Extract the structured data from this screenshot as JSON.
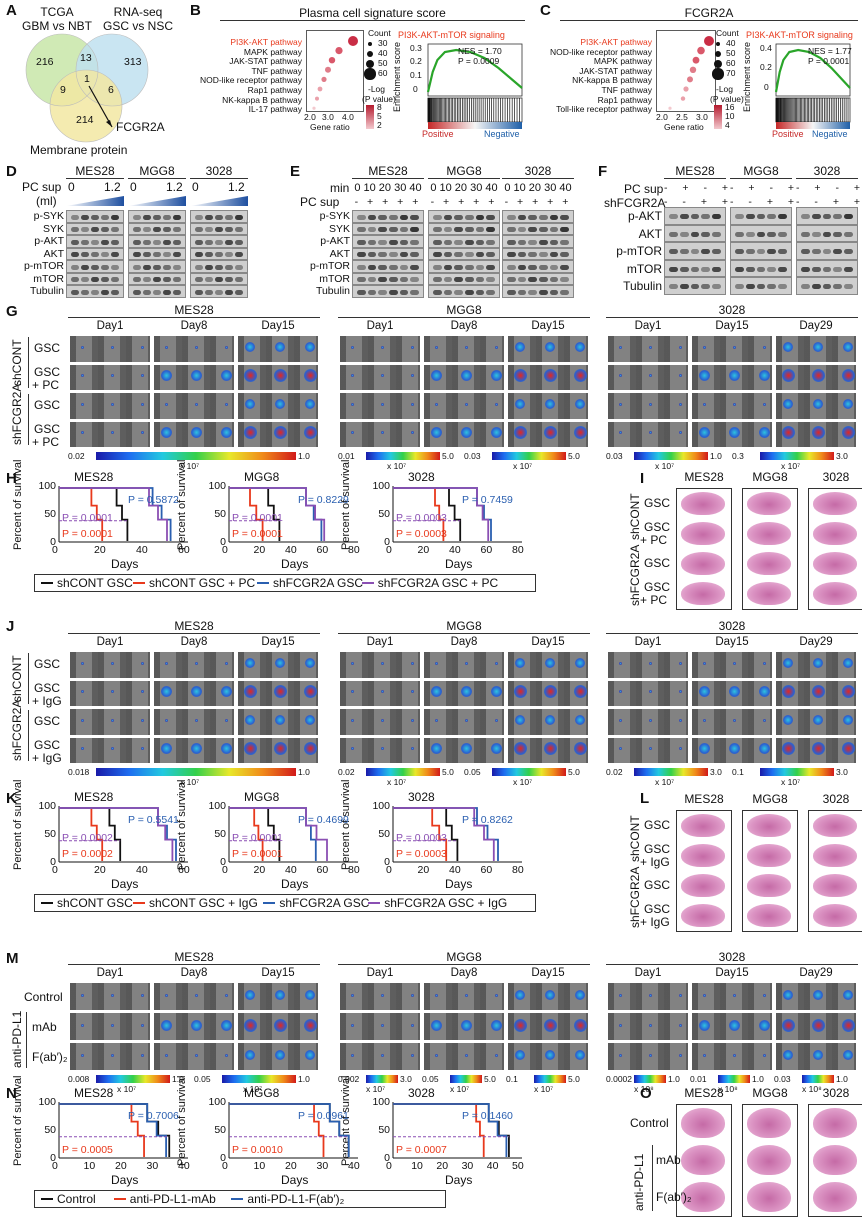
{
  "panels": [
    "A",
    "B",
    "C",
    "D",
    "E",
    "F",
    "G",
    "H",
    "I",
    "J",
    "K",
    "L",
    "M",
    "N",
    "O"
  ],
  "venn": {
    "set1": "TCGA\nGBM vs NBT",
    "set1_l1": "TCGA",
    "set1_l2": "GBM vs NBT",
    "set2_l1": "RNA-seq",
    "set2_l2": "GSC vs NSC",
    "set3": "Membrane protein",
    "regions": [
      "216",
      "13",
      "313",
      "9",
      "1",
      "6",
      "214"
    ],
    "gene": "FCGR2A",
    "colors": {
      "a": "#c8e6a8",
      "b": "#bfe0f0",
      "c": "#f2e7a2"
    }
  },
  "panelB": {
    "title": "Plasma cell signature score",
    "pathways": [
      "PI3K-AKT pathway",
      "MAPK pathway",
      "JAK-STAT pathway",
      "TNF pathway",
      "NOD-like receptor pathway",
      "Rap1 pathway",
      "NK-kappa B pathway",
      "IL-17 pathway"
    ],
    "xlabel": "Gene ratio",
    "xticks": [
      "2.0",
      "3.0",
      "4.0"
    ],
    "count_title": "Count",
    "counts": [
      "30",
      "40",
      "50",
      "60"
    ],
    "p_title": "-Log\n(P value)",
    "p_title_l1": "-Log",
    "p_title_l2": "(P value)",
    "pvals": [
      "8",
      "5",
      "2"
    ],
    "gsea_title": "PI3K-AKT-mTOR signaling",
    "nes": "NES = 1.70",
    "p": "P = 0.0009",
    "yticks": [
      "0.3",
      "0.2",
      "0.1",
      "0"
    ],
    "ylabel": "Enrichment score",
    "pos": "Positive",
    "neg": "Negative"
  },
  "panelC": {
    "title": "FCGR2A",
    "pathways": [
      "PI3K-AKT pathway",
      "NOD-like receptor pathway",
      "MAPK pathway",
      "JAK-STAT pathway",
      "NK-kappa B pathway",
      "TNF pathway",
      "Rap1 pathway",
      "Toll-like receptor pathway"
    ],
    "xlabel": "Gene ratio",
    "xticks": [
      "2.0",
      "2.5",
      "3.0"
    ],
    "count_title": "Count",
    "counts": [
      "40",
      "50",
      "60",
      "70"
    ],
    "p_title_l1": "-Log",
    "p_title_l2": "(P value)",
    "pvals": [
      "16",
      "10",
      "4"
    ],
    "gsea_title": "PI3K-AKT-mTOR signaling",
    "nes": "NES = 1.77",
    "p": "P = 0.0001",
    "yticks": [
      "0.4",
      "0.2",
      "0"
    ],
    "ylabel": "Enrichment score",
    "pos": "Positive",
    "neg": "Negative"
  },
  "panelD": {
    "cells": [
      "MES28",
      "MGG8",
      "3028"
    ],
    "pc_l1": "PC sup",
    "pc_l2": "(ml)",
    "range": [
      "0",
      "1.2"
    ],
    "rows": [
      "p-SYK",
      "SYK",
      "p-AKT",
      "AKT",
      "p-mTOR",
      "mTOR",
      "Tubulin"
    ]
  },
  "panelE": {
    "cells": [
      "MES28",
      "MGG8",
      "3028"
    ],
    "min_label": "min",
    "mins": "0 10 20 30 40",
    "pc_label": "PC sup",
    "pc_signs": "- + + + +",
    "rows": [
      "p-SYK",
      "SYK",
      "p-AKT",
      "AKT",
      "p-mTOR",
      "mTOR",
      "Tubulin"
    ]
  },
  "panelF": {
    "cells": [
      "MES28",
      "MGG8",
      "3028"
    ],
    "pc_label": "PC sup",
    "pc_signs": "- + - +",
    "sh_label": "shFCGR2A",
    "sh_signs": "- - + +",
    "rows": [
      "p-AKT",
      "AKT",
      "p-mTOR",
      "mTOR",
      "Tubulin"
    ]
  },
  "panelG": {
    "groups": [
      {
        "cell": "MES28",
        "days": [
          "Day1",
          "Day8",
          "Day15"
        ],
        "scale": [
          "0.02",
          "x 10⁷",
          "1.0"
        ]
      },
      {
        "cell": "MGG8",
        "days": [
          "Day1",
          "Day8",
          "Day15"
        ],
        "scale": [
          "0.01",
          "x 10⁷",
          "5.0",
          "0.03",
          "x 10⁷",
          "5.0"
        ]
      },
      {
        "cell": "3028",
        "days": [
          "Day1",
          "Day15",
          "Day29"
        ],
        "scale": [
          "0.03",
          "x 10⁷",
          "1.0",
          "0.3",
          "x 10⁷",
          "3.0"
        ]
      }
    ],
    "sh1": "shCONT",
    "sh2": "shFCGR2A",
    "rows": [
      "GSC",
      "GSC\n+ PC",
      "GSC",
      "GSC\n+ PC"
    ],
    "row_a": "GSC",
    "row_b1": "GSC",
    "row_b2": "+ PC"
  },
  "panelH": {
    "ylabel": "Percent of survival",
    "xlabel": "Days",
    "charts": [
      {
        "title": "MES28",
        "xticks": [
          "0",
          "20",
          "40",
          "60"
        ],
        "p_blue": "P = 0.5872",
        "p_purple": "P = 0.0001",
        "p_red": "P = 0.0001"
      },
      {
        "title": "MGG8",
        "xticks": [
          "0",
          "20",
          "40",
          "60",
          "80"
        ],
        "p_blue": "P = 0.8229",
        "p_purple": "P = 0.0001",
        "p_red": "P = 0.0001"
      },
      {
        "title": "3028",
        "xticks": [
          "0",
          "20",
          "40",
          "60",
          "80"
        ],
        "p_blue": "P = 0.7459",
        "p_purple": "P = 0.0003",
        "p_red": "P = 0.0003"
      }
    ],
    "yticks": [
      "100",
      "50",
      "0"
    ],
    "legend": [
      "shCONT GSC",
      "shCONT GSC + PC",
      "shFCGR2A GSC",
      "shFCGR2A GSC + PC"
    ],
    "colors": [
      "#111111",
      "#e8391c",
      "#2a5fb0",
      "#8a4fb3"
    ]
  },
  "panelI": {
    "cells": [
      "MES28",
      "MGG8",
      "3028"
    ],
    "sh1": "shCONT",
    "sh2": "shFCGR2A",
    "row_a": "GSC",
    "row_b1": "GSC",
    "row_b2": "+ PC"
  },
  "panelJ": {
    "groups": [
      {
        "cell": "MES28",
        "days": [
          "Day1",
          "Day8",
          "Day15"
        ],
        "scale": [
          "0.018",
          "x 10⁷",
          "1.0"
        ]
      },
      {
        "cell": "MGG8",
        "days": [
          "Day1",
          "Day8",
          "Day15"
        ],
        "scale": [
          "0.02",
          "x 10⁷",
          "5.0",
          "0.05",
          "x 10⁷",
          "5.0"
        ]
      },
      {
        "cell": "3028",
        "days": [
          "Day1",
          "Day15",
          "Day29"
        ],
        "scale": [
          "0.02",
          "x 10⁷",
          "3.0",
          "0.1",
          "x 10⁷",
          "3.0"
        ]
      }
    ],
    "sh1": "shCONT",
    "sh2": "shFCGR2A",
    "row_a": "GSC",
    "row_b1": "GSC",
    "row_b2": "+ IgG"
  },
  "panelK": {
    "ylabel": "Percent of survival",
    "xlabel": "Days",
    "charts": [
      {
        "title": "MES28",
        "xticks": [
          "0",
          "20",
          "40",
          "60"
        ],
        "p_blue": "P = 0.5541",
        "p_purple": "P = 0.0002",
        "p_red": "P = 0.0002"
      },
      {
        "title": "MGG8",
        "xticks": [
          "0",
          "20",
          "40",
          "60",
          "80"
        ],
        "p_blue": "P = 0.4699",
        "p_purple": "P = 0.0001",
        "p_red": "P = 0.0001"
      },
      {
        "title": "3028",
        "xticks": [
          "0",
          "20",
          "40",
          "60",
          "80"
        ],
        "p_blue": "P = 0.8262",
        "p_purple": "P = 0.0003",
        "p_red": "P = 0.0003"
      }
    ],
    "yticks": [
      "100",
      "50",
      "0"
    ],
    "legend": [
      "shCONT GSC",
      "shCONT GSC + IgG",
      "shFCGR2A GSC",
      "shFCGR2A GSC + IgG"
    ]
  },
  "panelL": {
    "cells": [
      "MES28",
      "MGG8",
      "3028"
    ],
    "sh1": "shCONT",
    "sh2": "shFCGR2A",
    "row_a": "GSC",
    "row_b1": "GSC",
    "row_b2": "+ IgG"
  },
  "panelM": {
    "groups": [
      {
        "cell": "MES28",
        "days": [
          "Day1",
          "Day8",
          "Day15"
        ],
        "scale": [
          "0.008",
          "x 10⁷",
          "1.0",
          "0.05",
          "x 10⁷",
          "1.0"
        ]
      },
      {
        "cell": "MGG8",
        "days": [
          "Day1",
          "Day8",
          "Day15"
        ],
        "scale": [
          "0.002",
          "x 10⁷",
          "3.0",
          "0.05",
          "x 10⁷",
          "5.0",
          "0.1",
          "x 10⁷",
          "5.0"
        ]
      },
      {
        "cell": "3028",
        "days": [
          "Day1",
          "Day15",
          "Day29"
        ],
        "scale": [
          "0.0002",
          "x 10⁸",
          "1.0",
          "0.01",
          "x 10⁸",
          "1.0",
          "0.03",
          "x 10⁸",
          "1.0"
        ]
      }
    ],
    "group_label": "anti-PD-L1",
    "rows": [
      "Control",
      "mAb",
      "F(ab′)₂"
    ]
  },
  "panelN": {
    "ylabel": "Percent of survival",
    "xlabel": "Days",
    "charts": [
      {
        "title": "MES28",
        "xticks": [
          "0",
          "10",
          "20",
          "30",
          "40"
        ],
        "p_blue": "P = 0.7006",
        "p_red": "P = 0.0005"
      },
      {
        "title": "MGG8",
        "xticks": [
          "0",
          "10",
          "20",
          "30",
          "40"
        ],
        "p_blue": "P = 0.0961",
        "p_red": "P = 0.0010"
      },
      {
        "title": "3028",
        "xticks": [
          "0",
          "10",
          "20",
          "30",
          "40",
          "50"
        ],
        "p_blue": "P = 0.1460",
        "p_red": "P = 0.0007"
      }
    ],
    "yticks": [
      "100",
      "50",
      "0"
    ],
    "legend": [
      "Control",
      "anti-PD-L1-mAb",
      "anti-PD-L1-F(ab′)₂"
    ]
  },
  "panelO": {
    "cells": [
      "MES28",
      "MGG8",
      "3028"
    ],
    "group_label": "anti-PD-L1",
    "rows": [
      "Control",
      "mAb",
      "F(ab′)₂"
    ]
  },
  "survival": {
    "H": [
      {
        "black": [
          32,
          38
        ],
        "red": [
          18,
          24
        ],
        "blue": [
          52,
          62
        ],
        "purple": [
          50,
          60
        ]
      },
      {
        "black": [
          28,
          36
        ],
        "red": [
          15,
          24
        ],
        "blue": [
          55,
          66
        ],
        "purple": [
          55,
          68
        ]
      },
      {
        "black": [
          40,
          48
        ],
        "red": [
          30,
          36
        ],
        "blue": [
          60,
          70
        ],
        "purple": [
          60,
          68
        ]
      }
    ],
    "K": [
      {
        "black": [
          28,
          34
        ],
        "red": [
          18,
          24
        ],
        "blue": [
          55,
          65
        ],
        "purple": [
          55,
          63
        ]
      },
      {
        "black": [
          28,
          36
        ],
        "red": [
          18,
          24
        ],
        "blue": [
          55,
          62
        ],
        "purple": [
          55,
          70
        ]
      },
      {
        "black": [
          38,
          46
        ],
        "red": [
          28,
          38
        ],
        "blue": [
          60,
          75
        ],
        "purple": [
          58,
          72
        ]
      }
    ],
    "N": [
      {
        "black": [
          28,
          35
        ],
        "red": [
          23,
          27
        ],
        "blue": [
          28,
          34
        ]
      },
      {
        "black": [
          32,
          38
        ],
        "red": [
          27,
          30
        ],
        "blue": [
          32,
          38
        ]
      },
      {
        "black": [
          38,
          46
        ],
        "red": [
          33,
          36
        ],
        "blue": [
          38,
          45
        ]
      }
    ]
  }
}
